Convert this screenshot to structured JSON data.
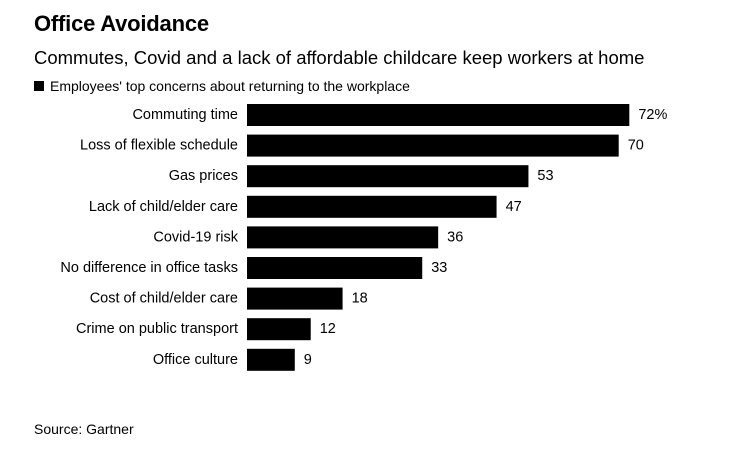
{
  "title": "Office Avoidance",
  "subtitle": "Commutes, Covid and a lack of affordable childcare keep workers at home",
  "legend": {
    "label": "Employees' top concerns about returning to the workplace",
    "color": "#000000"
  },
  "source": "Source: Gartner",
  "chart_data": {
    "type": "bar",
    "orientation": "horizontal",
    "categories": [
      "Commuting time",
      "Loss of flexible schedule",
      "Gas prices",
      "Lack of child/elder care",
      "Covid-19 risk",
      "No difference in office tasks",
      "Cost of child/elder care",
      "Crime on public transport",
      "Office culture"
    ],
    "series": [
      {
        "name": "Employees' top concerns about returning to the workplace",
        "values": [
          72,
          70,
          53,
          47,
          36,
          33,
          18,
          12,
          9
        ],
        "color": "#000000"
      }
    ],
    "data_labels": [
      "72%",
      "70",
      "53",
      "47",
      "36",
      "33",
      "18",
      "12",
      "9"
    ],
    "unit": "%",
    "xlim": [
      0,
      72
    ],
    "grid": false,
    "legend_position": "top-left"
  }
}
